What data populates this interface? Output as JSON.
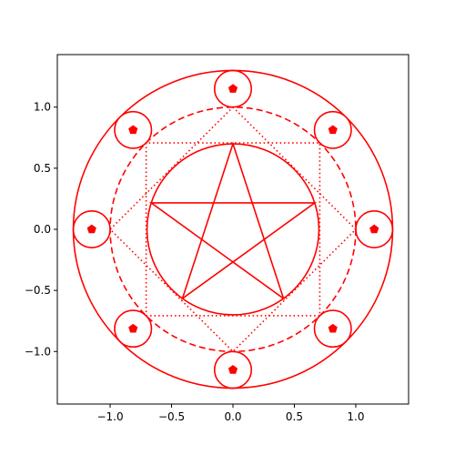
{
  "chart_data": {
    "type": "scatter",
    "title": "",
    "xlabel": "",
    "ylabel": "",
    "xlim": [
      -1.43,
      1.43
    ],
    "ylim": [
      -1.43,
      1.43
    ],
    "aspect": "equal",
    "grid": false,
    "xticks": [
      {
        "value": -1.0,
        "label": "−1.0"
      },
      {
        "value": -0.5,
        "label": "−0.5"
      },
      {
        "value": 0.0,
        "label": "0.0"
      },
      {
        "value": 0.5,
        "label": "0.5"
      },
      {
        "value": 1.0,
        "label": "1.0"
      }
    ],
    "yticks": [
      {
        "value": -1.0,
        "label": "−1.0"
      },
      {
        "value": -0.5,
        "label": "−0.5"
      },
      {
        "value": 0.0,
        "label": "0.0"
      },
      {
        "value": 0.5,
        "label": "0.5"
      },
      {
        "value": 1.0,
        "label": "1.0"
      }
    ],
    "color": "#ff0000",
    "shapes": {
      "outer_circle": {
        "center": [
          0,
          0
        ],
        "radius": 1.3,
        "style": "solid"
      },
      "dashed_circle": {
        "center": [
          0,
          0
        ],
        "radius": 1.0,
        "style": "dashed"
      },
      "inner_circle": {
        "center": [
          0,
          0
        ],
        "radius": 0.7,
        "style": "solid"
      },
      "dotted_square_axis": {
        "half_side": 0.707,
        "style": "dotted"
      },
      "dotted_square_diamond": {
        "vertex_radius": 1.0,
        "style": "dotted"
      },
      "pentagram": {
        "radius": 0.7,
        "start_angle_deg": 90,
        "style": "solid"
      },
      "small_circles": {
        "orbit_radius": 1.15,
        "count": 8,
        "radius": 0.15,
        "start_angle_deg": 0,
        "style": "solid"
      },
      "pentagon_markers": {
        "orbit_radius": 1.15,
        "count": 8,
        "size_data_units": 0.035
      }
    }
  }
}
